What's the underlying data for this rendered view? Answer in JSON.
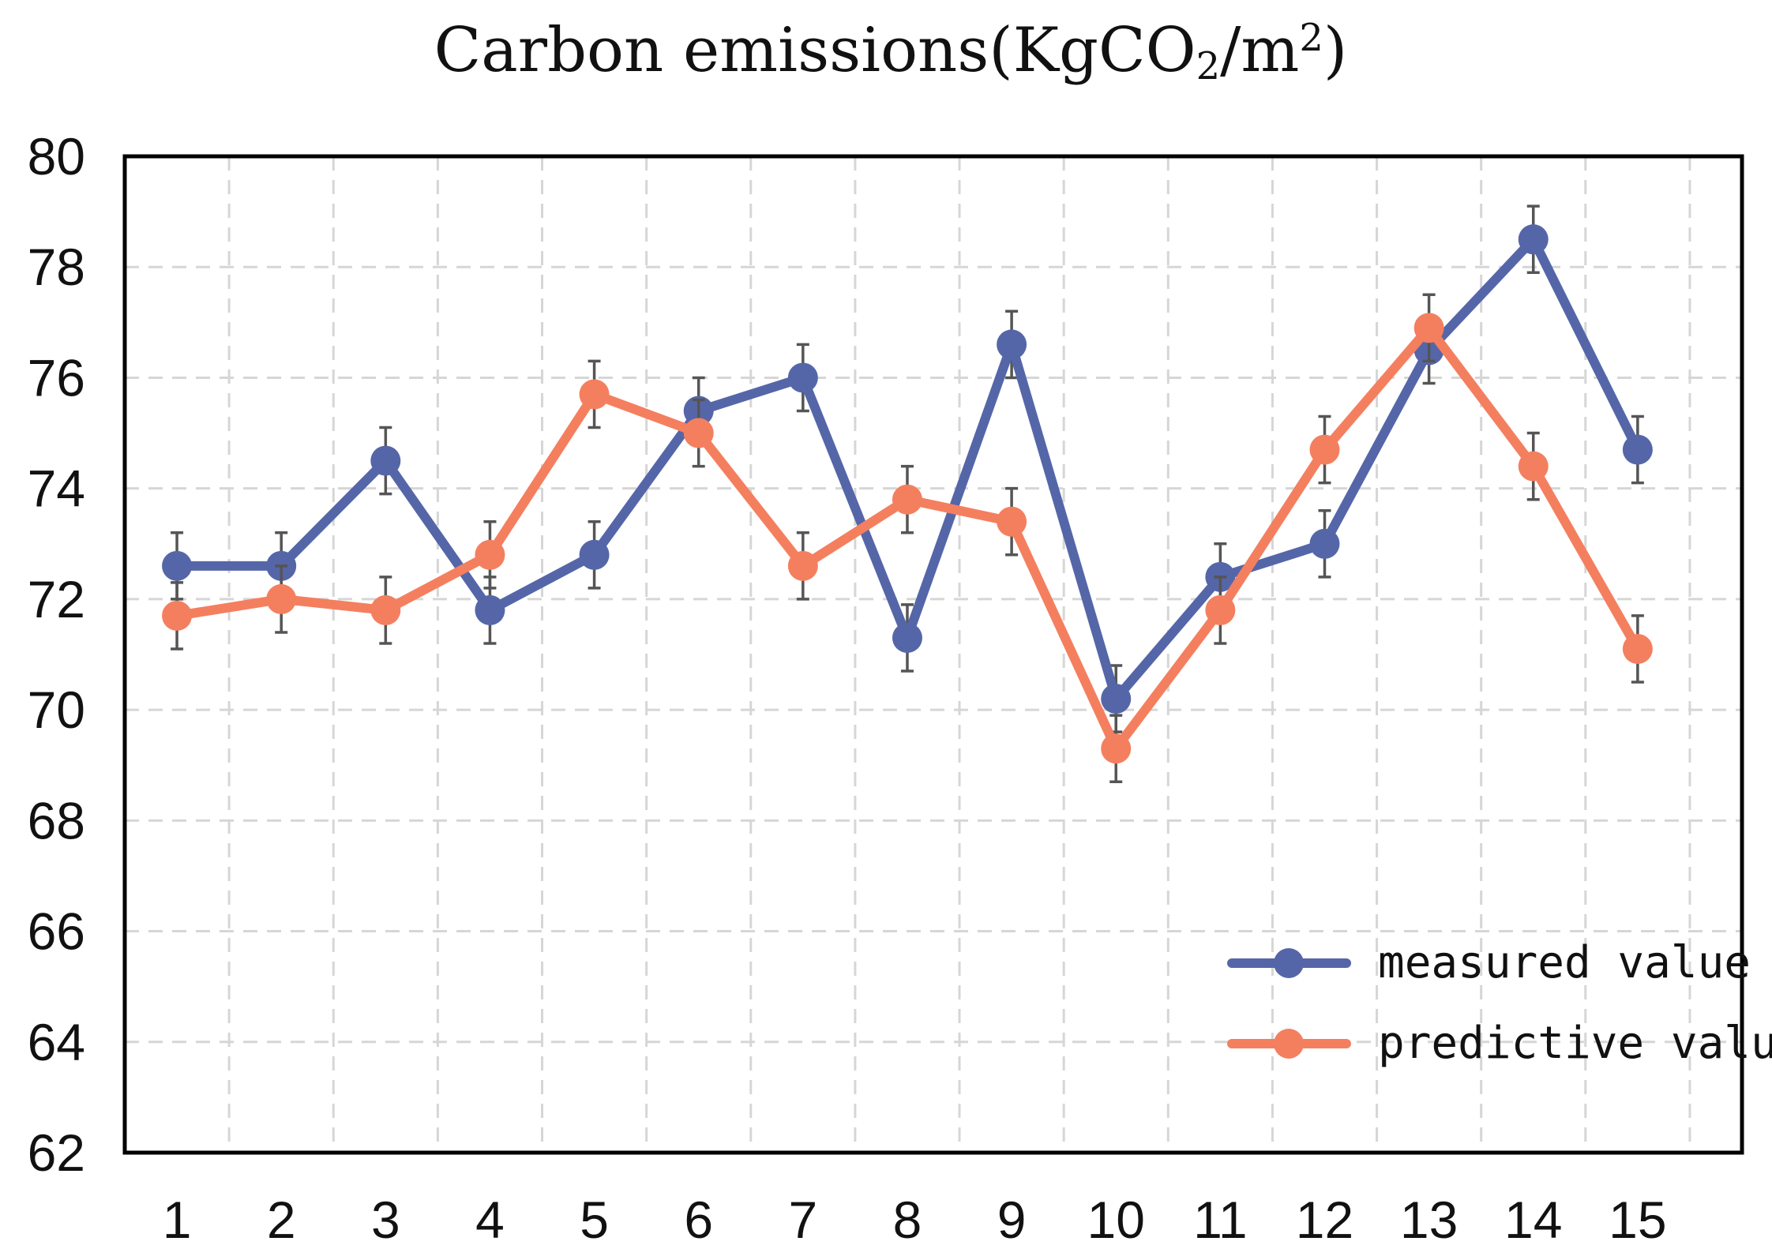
{
  "chart_data": {
    "type": "line",
    "title_parts": {
      "main": "Carbon emissions(KgCO",
      "sub": "2",
      "mid": "/m",
      "sup": "2",
      "end": ")"
    },
    "categories": [
      "1",
      "2",
      "3",
      "4",
      "5",
      "6",
      "7",
      "8",
      "9",
      "10",
      "11",
      "12",
      "13",
      "14",
      "15"
    ],
    "ylim": [
      62,
      80
    ],
    "yticks": [
      "62",
      "64",
      "66",
      "68",
      "70",
      "72",
      "74",
      "76",
      "78",
      "80"
    ],
    "grid": true,
    "legend_position": "bottom-right",
    "error_bar": 0.6,
    "series": [
      {
        "name": "measured value",
        "color": "#5566a8",
        "values": [
          72.6,
          72.6,
          74.5,
          71.8,
          72.8,
          75.4,
          76.0,
          71.3,
          76.6,
          70.2,
          72.4,
          73.0,
          76.5,
          78.5,
          74.7
        ]
      },
      {
        "name": "predictive value",
        "color": "#f47f5f",
        "values": [
          71.7,
          72.0,
          71.8,
          72.8,
          75.7,
          75.0,
          72.6,
          73.8,
          73.4,
          69.3,
          71.8,
          74.7,
          76.9,
          74.4,
          71.1
        ]
      }
    ]
  }
}
